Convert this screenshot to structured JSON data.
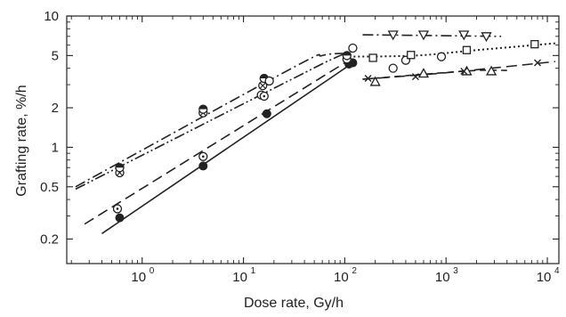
{
  "chart_data": {
    "type": "scatter",
    "xscale": "log",
    "yscale": "log",
    "xlabel": "Dose rate, Gy/h",
    "ylabel": "Grafting rate, %/h",
    "xlim": [
      0.18,
      13000
    ],
    "ylim": [
      0.13,
      10
    ],
    "grid": false,
    "x_ticks": [
      {
        "value": 1,
        "base": "10",
        "exp": "0"
      },
      {
        "value": 10,
        "base": "10",
        "exp": "1"
      },
      {
        "value": 100,
        "base": "10",
        "exp": "2"
      },
      {
        "value": 1000,
        "base": "10",
        "exp": "3"
      },
      {
        "value": 10000,
        "base": "10",
        "exp": "4"
      }
    ],
    "y_ticks": [
      {
        "value": 0.2,
        "label": "0.2"
      },
      {
        "value": 0.5,
        "label": "0.5"
      },
      {
        "value": 1,
        "label": "1"
      },
      {
        "value": 2,
        "label": "2"
      },
      {
        "value": 5,
        "label": "5"
      },
      {
        "value": 10,
        "label": "10"
      }
    ],
    "series": [
      {
        "marker": "filled-circle",
        "points": [
          [
            0.6,
            0.29
          ],
          [
            4,
            0.72
          ],
          [
            17,
            1.8
          ],
          [
            110,
            4.3
          ],
          [
            120,
            4.4
          ]
        ],
        "curve": {
          "style": "solid",
          "points": [
            [
              0.4,
              0.22
            ],
            [
              110,
              4.2
            ]
          ]
        }
      },
      {
        "marker": "dotted-circle",
        "points": [
          [
            0.57,
            0.34
          ],
          [
            4,
            0.85
          ],
          [
            15,
            2.5
          ],
          [
            16,
            2.45
          ],
          [
            105,
            4.7
          ]
        ],
        "curve": {
          "style": "long-dash",
          "points": [
            [
              0.27,
              0.26
            ],
            [
              105,
              4.5
            ]
          ]
        }
      },
      {
        "marker": "crossed-circle",
        "points": [
          [
            0.6,
            0.64
          ],
          [
            4,
            1.83
          ],
          [
            15.5,
            2.95
          ]
        ],
        "curve": {
          "style": "dash-dot-dot",
          "points": [
            [
              0.22,
              0.48
            ],
            [
              30,
              3.3
            ],
            [
              80,
              4.8
            ],
            [
              120,
              5.4
            ]
          ]
        }
      },
      {
        "marker": "half-filled-circle",
        "points": [
          [
            0.6,
            0.7
          ],
          [
            4,
            1.95
          ],
          [
            16,
            3.35
          ],
          [
            105,
            5.0
          ]
        ],
        "curve": {
          "style": "dash-dot",
          "points": [
            [
              0.22,
              0.5
            ],
            [
              30,
              4.0
            ],
            [
              60,
              5.0
            ],
            [
              100,
              5.2
            ]
          ]
        }
      },
      {
        "marker": "open-circle",
        "points": [
          [
            18,
            3.2
          ],
          [
            120,
            5.7
          ],
          [
            300,
            4.0
          ],
          [
            400,
            4.6
          ],
          [
            900,
            4.9
          ]
        ],
        "curve": {
          "style": "dotted",
          "points": [
            [
              100,
              4.9
            ],
            [
              500,
              5.0
            ],
            [
              2000,
              5.5
            ],
            [
              12000,
              6.2
            ]
          ]
        }
      },
      {
        "marker": "open-square",
        "points": [
          [
            190,
            4.8
          ],
          [
            450,
            5.05
          ],
          [
            1600,
            5.5
          ],
          [
            7500,
            6.1
          ]
        ],
        "curve": null
      },
      {
        "marker": "open-triangle-down",
        "points": [
          [
            300,
            7.2
          ],
          [
            600,
            7.2
          ],
          [
            1500,
            7.2
          ],
          [
            2500,
            7.0
          ]
        ],
        "curve": {
          "style": "dash-dot",
          "points": [
            [
              150,
              7.2
            ],
            [
              3500,
              7.0
            ]
          ]
        }
      },
      {
        "marker": "open-triangle-up",
        "points": [
          [
            200,
            3.15
          ],
          [
            600,
            3.65
          ],
          [
            1600,
            3.8
          ],
          [
            2800,
            3.8
          ]
        ],
        "curve": {
          "style": "dashed",
          "points": [
            [
              150,
              3.3
            ],
            [
              600,
              3.6
            ],
            [
              2000,
              3.85
            ],
            [
              4000,
              3.85
            ]
          ]
        }
      },
      {
        "marker": "x-cross",
        "points": [
          [
            170,
            3.35
          ],
          [
            500,
            3.45
          ],
          [
            1500,
            3.8
          ],
          [
            8000,
            4.4
          ]
        ],
        "curve": {
          "style": "long-dash",
          "points": [
            [
              150,
              3.3
            ],
            [
              1000,
              3.7
            ],
            [
              12000,
              4.5
            ]
          ]
        }
      }
    ]
  }
}
